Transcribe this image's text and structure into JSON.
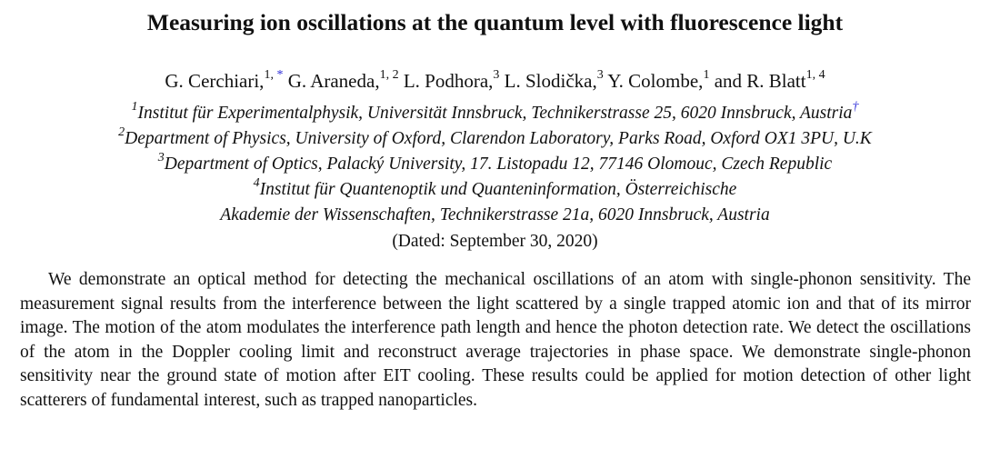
{
  "paper": {
    "title": "Measuring ion oscillations at the quantum level with fluorescence light",
    "authors": [
      {
        "name": "G. Cerchiari,",
        "sup": "1,",
        "mark": " *"
      },
      {
        "name": "G. Araneda,",
        "sup": "1, 2",
        "mark": ""
      },
      {
        "name": "L. Podhora,",
        "sup": "3",
        "mark": ""
      },
      {
        "name": "L. Slodička,",
        "sup": "3",
        "mark": ""
      },
      {
        "name": "Y. Colombe,",
        "sup": "1",
        "mark": ""
      },
      {
        "name": "and R. Blatt",
        "sup": "1, 4",
        "mark": ""
      }
    ],
    "affiliations": [
      {
        "num": "1",
        "text": "Institut für Experimentalphysik, Universität Innsbruck, Technikerstrasse 25, 6020 Innsbruck, Austria",
        "mark": "†"
      },
      {
        "num": "2",
        "text": "Department of Physics, University of Oxford, Clarendon Laboratory, Parks Road, Oxford OX1 3PU, U.K",
        "mark": ""
      },
      {
        "num": "3",
        "text": "Department of Optics, Palacký University, 17. Listopadu 12, 77146 Olomouc, Czech Republic",
        "mark": ""
      },
      {
        "num": "4",
        "text": "Institut für Quantenoptik und Quanteninformation, Österreichische",
        "mark": ""
      },
      {
        "num": "",
        "text": "Akademie der Wissenschaften, Technikerstrasse 21a, 6020 Innsbruck, Austria",
        "mark": ""
      }
    ],
    "dated": "(Dated: September 30, 2020)",
    "abstract": "We demonstrate an optical method for detecting the mechanical oscillations of an atom with single-phonon sensitivity. The measurement signal results from the interference between the light scattered by a single trapped atomic ion and that of its mirror image. The motion of the atom modulates the interference path length and hence the photon detection rate. We detect the oscillations of the atom in the Doppler cooling limit and reconstruct average trajectories in phase space. We demonstrate single-phonon sensitivity near the ground state of motion after EIT cooling. These results could be applied for motion detection of other light scatterers of fundamental interest, such as trapped nanoparticles."
  }
}
